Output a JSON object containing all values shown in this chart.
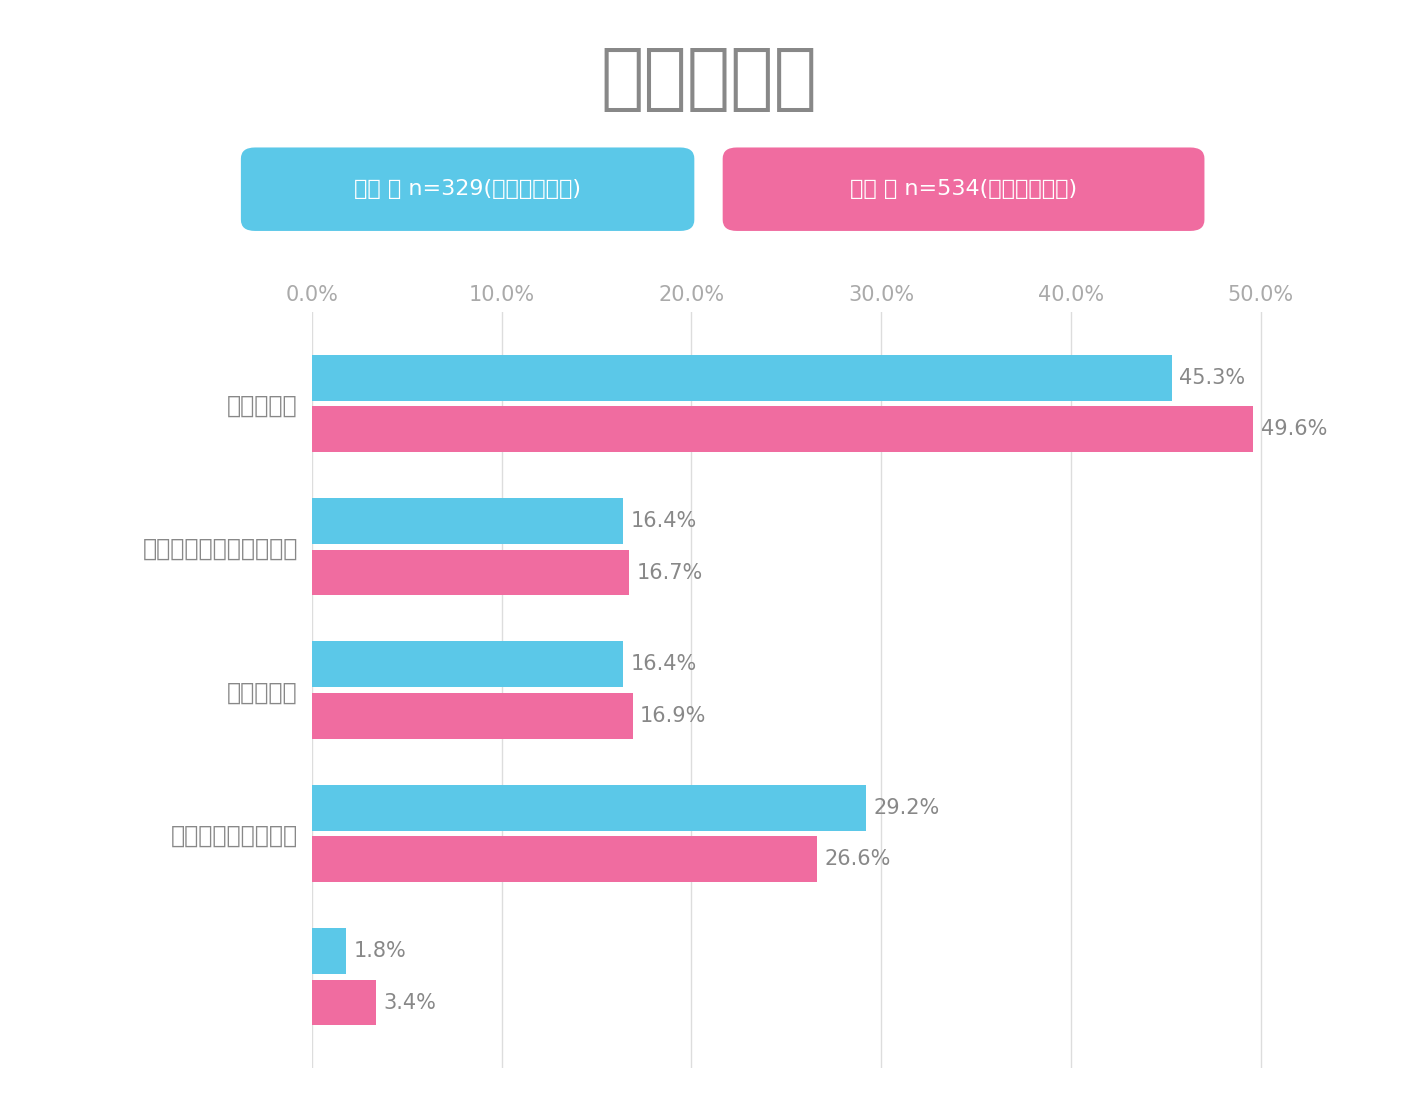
{
  "title": "貯金の目的",
  "legend_boy": "男子 ／ n=329(未回答者除く)",
  "legend_girl": "女子 ／ n=534(未回答者除く)",
  "categories": [
    "将来のため",
    "買いたいものがあるため",
    "趣味のため",
    "具体的な目的はない",
    ""
  ],
  "boy_values": [
    45.3,
    16.4,
    16.4,
    29.2,
    1.8
  ],
  "girl_values": [
    49.6,
    16.7,
    16.9,
    26.6,
    3.4
  ],
  "boy_color": "#5BC8E8",
  "girl_color": "#F06CA0",
  "boy_legend_bg": "#5BC8E8",
  "girl_legend_bg": "#F06CA0",
  "xlim": [
    0,
    53
  ],
  "xticks": [
    0,
    10,
    20,
    30,
    40,
    50
  ],
  "xtick_labels": [
    "0.0%",
    "10.0%",
    "20.0%",
    "30.0%",
    "40.0%",
    "50.0%"
  ],
  "title_color": "#888888",
  "label_color": "#888888",
  "tick_color": "#aaaaaa",
  "grid_color": "#dddddd",
  "bg_color": "#ffffff",
  "title_fontsize": 52,
  "label_fontsize": 17,
  "value_fontsize": 15,
  "legend_fontsize": 16,
  "bar_height": 0.32,
  "bar_gap": 0.04
}
